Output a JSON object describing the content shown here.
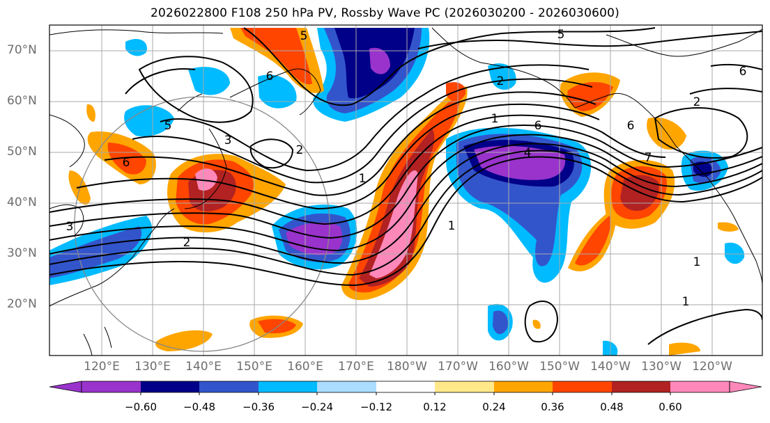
{
  "title": "2026022800 F108 250 hPa PV, Rossby Wave PC (2026030200 - 2026030600)",
  "lat_labels": [
    "70°N",
    "60°N",
    "50°N",
    "40°N",
    "30°N",
    "20°N"
  ],
  "lon_labels": [
    "120°E",
    "130°E",
    "140°E",
    "150°E",
    "160°E",
    "170°E",
    "180°W",
    "170°W",
    "160°W",
    "150°W",
    "140°W",
    "130°W",
    "120°W"
  ],
  "colorbar": {
    "ticks": [
      "−0.60",
      "−0.48",
      "−0.36",
      "−0.24",
      "−0.12",
      "0.12",
      "0.24",
      "0.36",
      "0.48",
      "0.60"
    ],
    "colors": [
      "#9933cc",
      "#000088",
      "#3355cc",
      "#00bbff",
      "#aaddff",
      "#ffffff",
      "#ffe88a",
      "#ffa500",
      "#ff4500",
      "#b22222",
      "#ff88bb"
    ]
  },
  "contour_labels": [
    "5",
    "5",
    "6",
    "6",
    "5",
    "3",
    "2",
    "6",
    "2",
    "1",
    "4",
    "6",
    "7",
    "1",
    "3",
    "2",
    "1",
    "1",
    "1",
    "6",
    "2"
  ],
  "legend_colors": {
    "contour": "#000000",
    "grid": "#aaaaaa",
    "coast": "#000000",
    "circle": "#888888"
  }
}
